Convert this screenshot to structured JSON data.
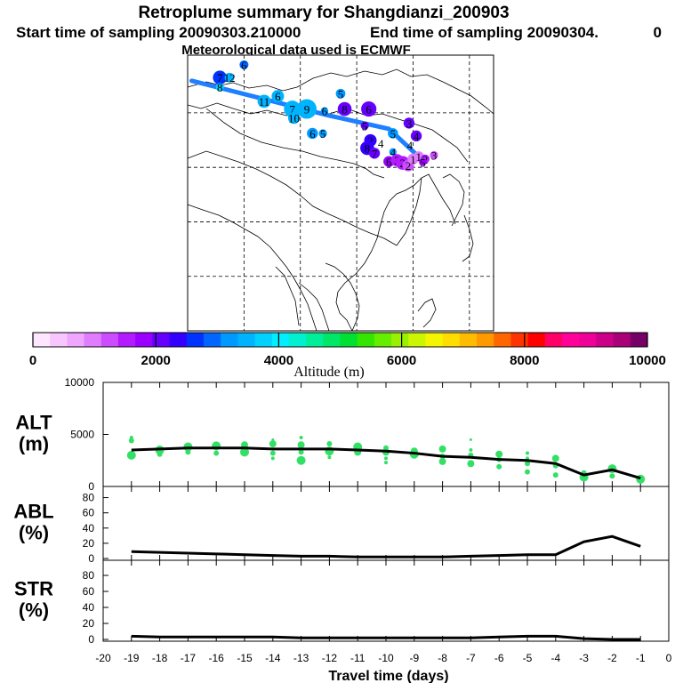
{
  "header": {
    "title": "Retroplume summary for Shangdianzi_200903",
    "start_label": "Start time of sampling 20090303.210000",
    "end_label": "End time of sampling 20090304.",
    "end_value": "0",
    "met_label": "Meteorological data used is ECMWF"
  },
  "map": {
    "trajectory_color": "#1e7fff",
    "plume_points": [
      {
        "lon": 88.0,
        "lat": 52.5,
        "label": "7",
        "alt": 2600,
        "size": 1.2
      },
      {
        "lon": 89.2,
        "lat": 52.5,
        "label": "12",
        "alt": 3500,
        "size": 0.6
      },
      {
        "lon": 91.0,
        "lat": 54.5,
        "label": "6",
        "alt": 2900,
        "size": 0.5
      },
      {
        "lon": 88.0,
        "lat": 51.0,
        "label": "8",
        "alt": 3700,
        "size": 0.4
      },
      {
        "lon": 93.5,
        "lat": 48.8,
        "label": "11",
        "alt": 3500,
        "size": 1.1
      },
      {
        "lon": 95.2,
        "lat": 49.6,
        "label": "6",
        "alt": 3400,
        "size": 1.0
      },
      {
        "lon": 97.0,
        "lat": 47.6,
        "label": "7",
        "alt": 3400,
        "size": 1.6
      },
      {
        "lon": 98.8,
        "lat": 47.6,
        "label": "9",
        "alt": 3500,
        "size": 2.0
      },
      {
        "lon": 97.2,
        "lat": 46.2,
        "label": "10",
        "alt": 3400,
        "size": 0.9
      },
      {
        "lon": 101.0,
        "lat": 47.3,
        "label": "6",
        "alt": 3300,
        "size": 0.3
      },
      {
        "lon": 103.5,
        "lat": 47.6,
        "label": "8",
        "alt": 2200,
        "size": 1.2
      },
      {
        "lon": 106.5,
        "lat": 47.6,
        "label": "6",
        "alt": 2200,
        "size": 1.4
      },
      {
        "lon": 103.0,
        "lat": 50.0,
        "label": "5",
        "alt": 3300,
        "size": 0.6
      },
      {
        "lon": 106.0,
        "lat": 45.0,
        "label": "5",
        "alt": 2100,
        "size": 0.4
      },
      {
        "lon": 99.5,
        "lat": 43.8,
        "label": "6",
        "alt": 3300,
        "size": 0.8
      },
      {
        "lon": 100.8,
        "lat": 43.8,
        "label": "5",
        "alt": 3200,
        "size": 0.4
      },
      {
        "lon": 109.5,
        "lat": 43.8,
        "label": "5",
        "alt": 3300,
        "size": 0.7
      },
      {
        "lon": 111.5,
        "lat": 45.4,
        "label": "3",
        "alt": 2200,
        "size": 0.8
      },
      {
        "lon": 112.4,
        "lat": 43.4,
        "label": "4",
        "alt": 2200,
        "size": 0.8
      },
      {
        "lon": 106.7,
        "lat": 42.7,
        "label": "2",
        "alt": 2300,
        "size": 1.0
      },
      {
        "lon": 106.3,
        "lat": 41.5,
        "label": "8",
        "alt": 2300,
        "size": 1.2
      },
      {
        "lon": 107.2,
        "lat": 40.7,
        "label": "7",
        "alt": 2100,
        "size": 0.8
      },
      {
        "lon": 109.5,
        "lat": 40.9,
        "label": "4",
        "alt": 3200,
        "size": 0.3
      },
      {
        "lon": 109.0,
        "lat": 39.4,
        "label": "6",
        "alt": 1800,
        "size": 0.8
      },
      {
        "lon": 110.0,
        "lat": 39.6,
        "label": "3",
        "alt": 1500,
        "size": 1.0
      },
      {
        "lon": 110.7,
        "lat": 39.2,
        "label": "2",
        "alt": 1500,
        "size": 1.2
      },
      {
        "lon": 111.4,
        "lat": 38.8,
        "label": "2",
        "alt": 1200,
        "size": 0.9
      },
      {
        "lon": 112.0,
        "lat": 39.8,
        "label": "1",
        "alt": 1000,
        "size": 0.8
      },
      {
        "lon": 112.7,
        "lat": 40.2,
        "label": "1",
        "alt": 900,
        "size": 0.7
      },
      {
        "lon": 113.5,
        "lat": 39.8,
        "label": "2",
        "alt": 1500,
        "size": 0.5
      },
      {
        "lon": 114.6,
        "lat": 40.4,
        "label": "3",
        "alt": 1200,
        "size": 0.4
      },
      {
        "lon": 113.2,
        "lat": 39.3,
        "label": "5",
        "alt": 1700,
        "size": 0.3
      }
    ],
    "float_labels": [
      {
        "lon": 108.0,
        "lat": 42.3,
        "label": "4"
      },
      {
        "lon": 111.6,
        "lat": 42.0,
        "label": "4"
      },
      {
        "lon": 106.0,
        "lat": 45.0,
        "label": "5"
      }
    ]
  },
  "colorbar": {
    "label": "Altitude (m)",
    "tick_labels": [
      "0",
      "2000",
      "4000",
      "6000",
      "8000",
      "10000"
    ],
    "colors": [
      "#ffe6ff",
      "#f7c6ff",
      "#efa6ff",
      "#e07dff",
      "#cc4dff",
      "#b21aff",
      "#9900ff",
      "#6600ff",
      "#3300ff",
      "#0033ff",
      "#0066ff",
      "#0099ff",
      "#00b3ff",
      "#00d1ff",
      "#00eeff",
      "#00f0d0",
      "#00ee99",
      "#00e666",
      "#00e033",
      "#33e600",
      "#66ee00",
      "#99f000",
      "#ccf500",
      "#f5f500",
      "#ffdd00",
      "#ffbb00",
      "#ff9900",
      "#ff6600",
      "#ff3300",
      "#ff0000",
      "#ff0066",
      "#ff0099",
      "#ee0099",
      "#cc0088",
      "#aa0077",
      "#770066"
    ]
  },
  "chart_data": {
    "type": "line",
    "xlabel": "Travel time (days)",
    "xlim": [
      -20,
      0
    ],
    "x_tick_labels": [
      "-20",
      "-19",
      "-18",
      "-17",
      "-16",
      "-15",
      "-14",
      "-13",
      "-12",
      "-11",
      "-10",
      "-9",
      "-8",
      "-7",
      "-6",
      "-5",
      "-4",
      "-3",
      "-2",
      "-1",
      "0"
    ],
    "panels": [
      {
        "name": "alt",
        "ylabel": "ALT\n(m)",
        "ylabel_lines": [
          "ALT",
          "(m)"
        ],
        "ylim": [
          0,
          10000
        ],
        "y_tick_labels": [
          "0",
          "5000",
          "10000"
        ],
        "series": [
          {
            "name": "mean altitude",
            "x": [
              -19,
              -18,
              -17,
              -16,
              -15,
              -14,
              -13,
              -12,
              -11,
              -10,
              -9,
              -8,
              -7,
              -6,
              -5,
              -4,
              -3,
              -2,
              -1
            ],
            "values": [
              3500,
              3600,
              3700,
              3700,
              3700,
              3600,
              3600,
              3600,
              3500,
              3400,
              3200,
              2900,
              2800,
              2600,
              2500,
              2200,
              1100,
              1600,
              800
            ]
          }
        ],
        "scatter_points": [
          {
            "x": -19,
            "y": 3000,
            "s": 5
          },
          {
            "x": -19,
            "y": 4400,
            "s": 3
          },
          {
            "x": -19,
            "y": 4700,
            "s": 2
          },
          {
            "x": -18,
            "y": 3500,
            "s": 5
          },
          {
            "x": -18,
            "y": 3100,
            "s": 3
          },
          {
            "x": -17,
            "y": 3800,
            "s": 5
          },
          {
            "x": -17,
            "y": 3300,
            "s": 3
          },
          {
            "x": -16,
            "y": 3900,
            "s": 5
          },
          {
            "x": -16,
            "y": 3200,
            "s": 3
          },
          {
            "x": -15,
            "y": 4000,
            "s": 4
          },
          {
            "x": -15,
            "y": 3300,
            "s": 5
          },
          {
            "x": -14,
            "y": 4100,
            "s": 4
          },
          {
            "x": -14,
            "y": 2700,
            "s": 2
          },
          {
            "x": -14,
            "y": 3200,
            "s": 3
          },
          {
            "x": -14,
            "y": 4500,
            "s": 1.5
          },
          {
            "x": -13,
            "y": 2500,
            "s": 5
          },
          {
            "x": -13,
            "y": 4000,
            "s": 4
          },
          {
            "x": -13,
            "y": 4700,
            "s": 2
          },
          {
            "x": -13,
            "y": 3300,
            "s": 3
          },
          {
            "x": -12,
            "y": 3400,
            "s": 5
          },
          {
            "x": -12,
            "y": 4100,
            "s": 3
          },
          {
            "x": -12,
            "y": 2800,
            "s": 2
          },
          {
            "x": -11,
            "y": 3300,
            "s": 4
          },
          {
            "x": -11,
            "y": 3800,
            "s": 5
          },
          {
            "x": -10,
            "y": 3300,
            "s": 4
          },
          {
            "x": -10,
            "y": 2700,
            "s": 2
          },
          {
            "x": -10,
            "y": 2300,
            "s": 2
          },
          {
            "x": -10,
            "y": 3700,
            "s": 3
          },
          {
            "x": -9,
            "y": 3100,
            "s": 5
          },
          {
            "x": -9,
            "y": 3400,
            "s": 4
          },
          {
            "x": -8,
            "y": 3600,
            "s": 4
          },
          {
            "x": -8,
            "y": 2400,
            "s": 4
          },
          {
            "x": -8,
            "y": 2900,
            "s": 3
          },
          {
            "x": -7,
            "y": 2200,
            "s": 4
          },
          {
            "x": -7,
            "y": 3000,
            "s": 3
          },
          {
            "x": -7,
            "y": 3500,
            "s": 2
          },
          {
            "x": -7,
            "y": 4500,
            "s": 1.5
          },
          {
            "x": -6,
            "y": 1900,
            "s": 3
          },
          {
            "x": -6,
            "y": 2600,
            "s": 3
          },
          {
            "x": -6,
            "y": 3100,
            "s": 4
          },
          {
            "x": -5,
            "y": 1400,
            "s": 3
          },
          {
            "x": -5,
            "y": 2200,
            "s": 3
          },
          {
            "x": -5,
            "y": 2700,
            "s": 2
          },
          {
            "x": -5,
            "y": 3200,
            "s": 2
          },
          {
            "x": -4,
            "y": 1100,
            "s": 3
          },
          {
            "x": -4,
            "y": 2000,
            "s": 3
          },
          {
            "x": -4,
            "y": 2700,
            "s": 4
          },
          {
            "x": -3,
            "y": 900,
            "s": 5
          },
          {
            "x": -3,
            "y": 1300,
            "s": 3
          },
          {
            "x": -2,
            "y": 1700,
            "s": 5
          },
          {
            "x": -2,
            "y": 1000,
            "s": 3
          },
          {
            "x": -1,
            "y": 700,
            "s": 5
          }
        ]
      },
      {
        "name": "abl",
        "ylabel_lines": [
          "ABL",
          "(%)"
        ],
        "ylim": [
          0,
          90
        ],
        "y_tick_labels": [
          "0",
          "20",
          "40",
          "60",
          "80"
        ],
        "series": [
          {
            "name": "fraction in ABL",
            "x": [
              -19,
              -18,
              -17,
              -16,
              -15,
              -14,
              -13,
              -12,
              -11,
              -10,
              -9,
              -8,
              -7,
              -6,
              -5,
              -4,
              -3,
              -2,
              -1
            ],
            "values": [
              9,
              8,
              7,
              6,
              5,
              4,
              3,
              3,
              2,
              2,
              2,
              2,
              3,
              4,
              5,
              5,
              22,
              29,
              16
            ]
          }
        ]
      },
      {
        "name": "str",
        "ylabel_lines": [
          "STR",
          "(%)"
        ],
        "ylim": [
          0,
          90
        ],
        "y_tick_labels": [
          "0",
          "20",
          "40",
          "60",
          "80"
        ],
        "series": [
          {
            "name": "fraction in stratosphere",
            "x": [
              -19,
              -18,
              -17,
              -16,
              -15,
              -14,
              -13,
              -12,
              -11,
              -10,
              -9,
              -8,
              -7,
              -6,
              -5,
              -4,
              -3,
              -2,
              -1
            ],
            "values": [
              4,
              3,
              3,
              3,
              3,
              3,
              2,
              2,
              2,
              2,
              2,
              2,
              2,
              3,
              4,
              4,
              1,
              0,
              0
            ]
          }
        ]
      }
    ]
  }
}
